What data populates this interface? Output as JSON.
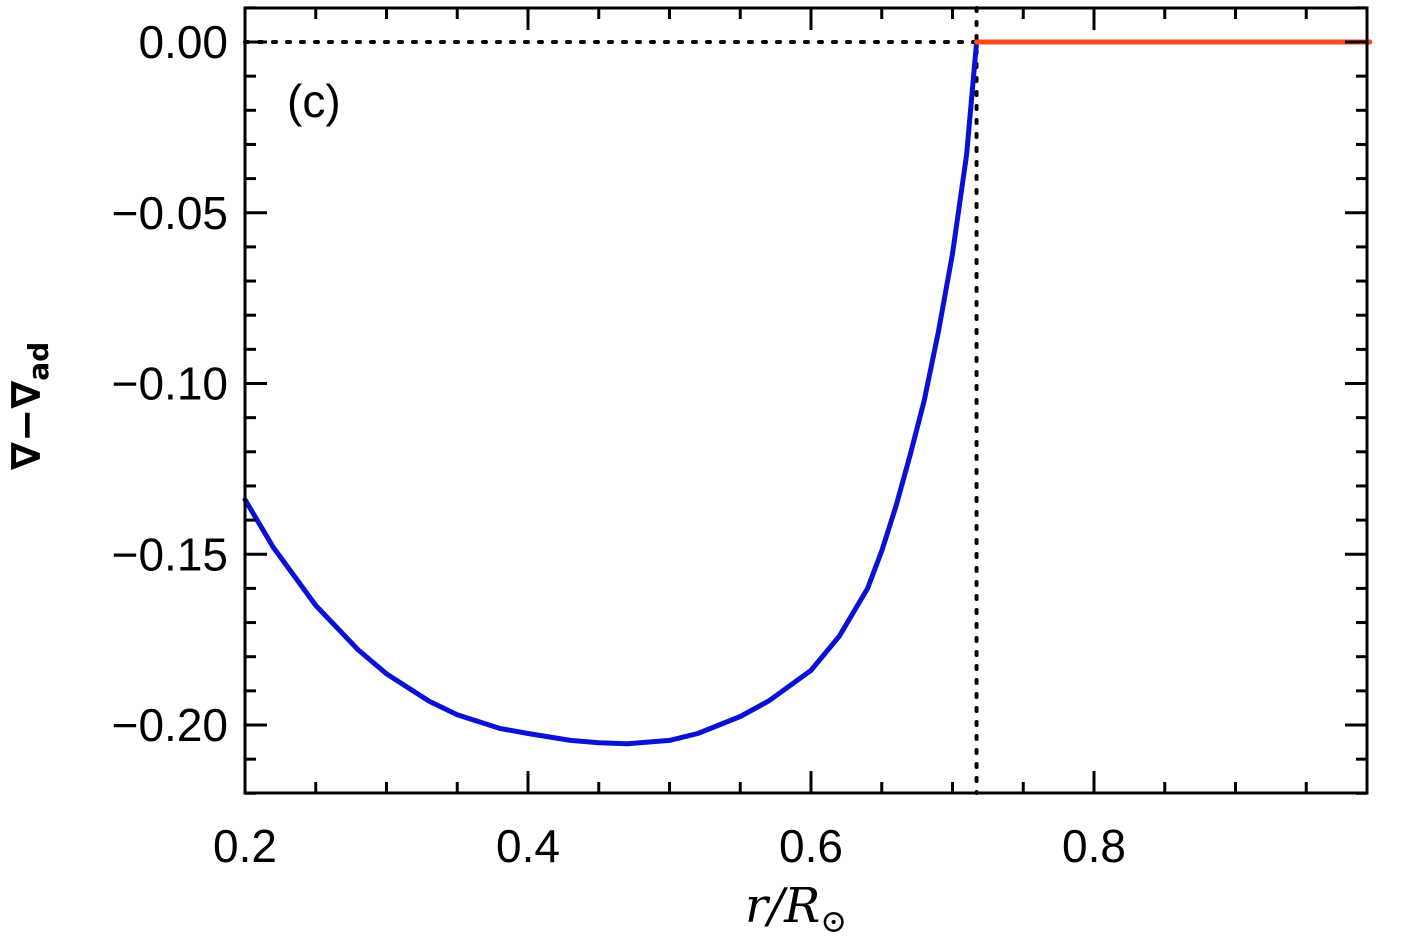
{
  "chart_data": {
    "type": "line",
    "panel_label": "(c)",
    "xlabel": "r/R",
    "xlabel_symbol": "⊙",
    "ylabel": "∇−∇",
    "ylabel_sub": "ad",
    "xlim": [
      0.2,
      0.995
    ],
    "ylim": [
      -0.22,
      0.01
    ],
    "x_ticks": [
      0.2,
      0.4,
      0.6,
      0.8
    ],
    "x_tick_labels": [
      "0.2",
      "0.4",
      "0.6",
      "0.8"
    ],
    "y_ticks": [
      0.0,
      -0.05,
      -0.1,
      -0.15,
      -0.2
    ],
    "y_tick_labels": [
      "0.00",
      "−0.05",
      "−0.10",
      "−0.15",
      "−0.20"
    ],
    "reference_lines": {
      "horizontal_dotted_y": 0.0,
      "vertical_dotted_x": 0.717
    },
    "series": [
      {
        "color": "#0a10d6",
        "style": "solid",
        "x": [
          0.2,
          0.22,
          0.25,
          0.28,
          0.3,
          0.33,
          0.35,
          0.38,
          0.4,
          0.43,
          0.45,
          0.47,
          0.5,
          0.52,
          0.55,
          0.57,
          0.6,
          0.62,
          0.64,
          0.65,
          0.66,
          0.67,
          0.68,
          0.69,
          0.7,
          0.71,
          0.717
        ],
        "y": [
          -0.134,
          -0.148,
          -0.165,
          -0.178,
          -0.185,
          -0.193,
          -0.197,
          -0.201,
          -0.2025,
          -0.2045,
          -0.2052,
          -0.2055,
          -0.2045,
          -0.2025,
          -0.1975,
          -0.193,
          -0.184,
          -0.174,
          -0.16,
          -0.149,
          -0.136,
          -0.121,
          -0.105,
          -0.085,
          -0.062,
          -0.033,
          0.0
        ]
      },
      {
        "color": "#ff4a1c",
        "style": "solid",
        "x": [
          0.717,
          0.995
        ],
        "y": [
          0.0,
          0.0
        ]
      }
    ]
  }
}
